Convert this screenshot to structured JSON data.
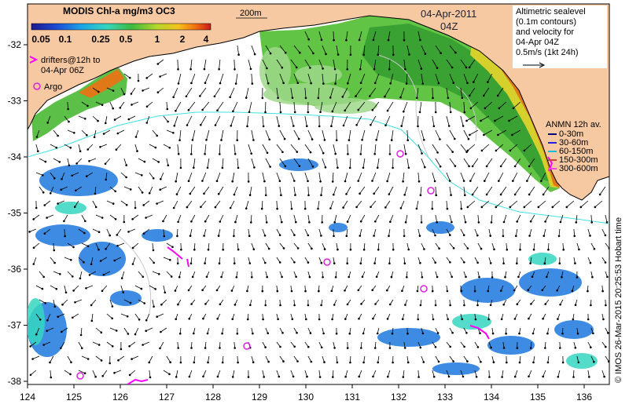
{
  "map": {
    "title": "MODIS Chl-a mg/m3 OC3",
    "colorbar_ticks": [
      "0.05",
      "0.1",
      "0.25",
      "0.5",
      "1",
      "2",
      "4"
    ],
    "contour_label": "200m",
    "date": "04-Apr-2011",
    "time": "04Z",
    "drifters_legend": [
      "drifters@12h to",
      "04-Apr 06Z"
    ],
    "argo_label": "Argo",
    "altimetry_lines": [
      "Altimetric sealevel",
      "(0.1m contours)",
      "and velocity for",
      "04-Apr 04Z",
      "0.5m/s (1kt 24h)"
    ],
    "anmn_title": "ANMN 12h av.",
    "anmn_items": [
      {
        "label": "0-30m",
        "color": "#000080"
      },
      {
        "label": "30-60m",
        "color": "#2020e0"
      },
      {
        "label": "60-150m",
        "color": "#00c0e0"
      },
      {
        "label": "150-300m",
        "color": "#d04040"
      },
      {
        "label": "300-600m",
        "color": "#ff40ff"
      }
    ],
    "credit": "© IMOS 26-Mar-2015 20:25:53 Hobart time",
    "x_ticks": [
      "124",
      "125",
      "126",
      "127",
      "128",
      "129",
      "130",
      "131",
      "132",
      "133",
      "134",
      "135",
      "136"
    ],
    "y_ticks": [
      "-32",
      "-33",
      "-34",
      "-35",
      "-36",
      "-37",
      "-38"
    ],
    "colors": {
      "land": "#f7c9a2",
      "coast": "#000000",
      "argo": "#e020e0",
      "drifter": "#ff00ff",
      "contour_200m": "#40e0e0",
      "arrow": "#000000"
    }
  }
}
